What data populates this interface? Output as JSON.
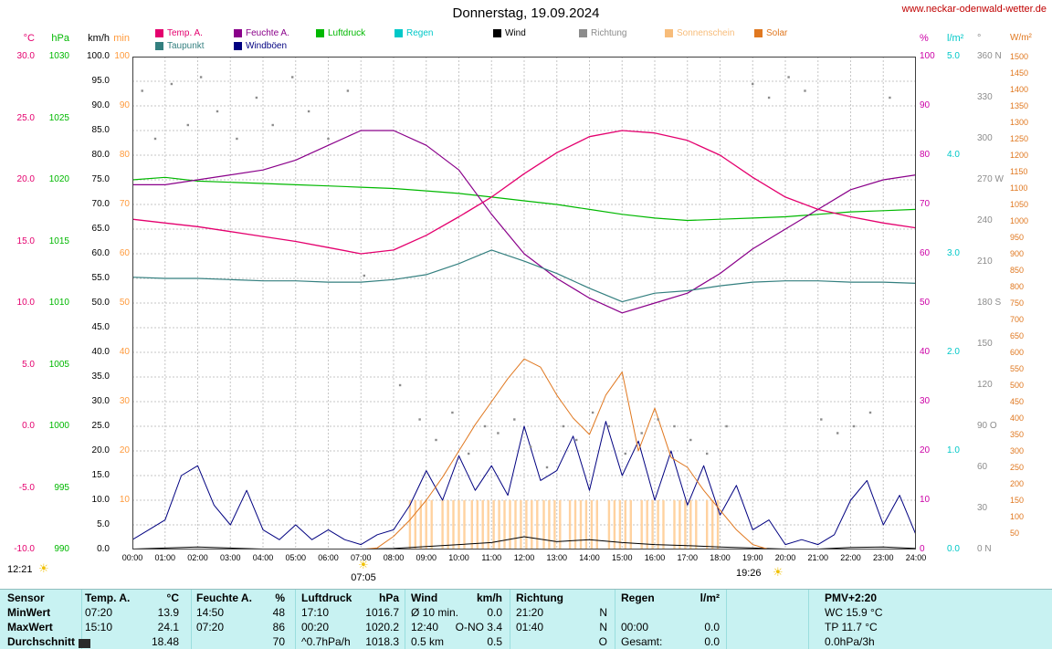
{
  "header": {
    "title": "Donnerstag, 19.09.2024",
    "url": "www.neckar-odenwald-wetter.de"
  },
  "legend": {
    "row1": [
      {
        "label": "Temp. A.",
        "color": "#e4006e"
      },
      {
        "label": "Feuchte A.",
        "color": "#8a008a"
      },
      {
        "label": "Luftdruck",
        "color": "#00b800"
      },
      {
        "label": "Regen",
        "color": "#00c8c8"
      },
      {
        "label": "Wind",
        "color": "#000000"
      },
      {
        "label": "Richtung",
        "color": "#8c8c8c"
      },
      {
        "label": "Sonnenschein",
        "color": "#f7bc7a"
      },
      {
        "label": "Solar",
        "color": "#e07820"
      }
    ],
    "row2": [
      {
        "label": "Taupunkt",
        "color": "#337f7f"
      },
      {
        "label": "Windböen",
        "color": "#000080"
      }
    ]
  },
  "sun": {
    "day_length": "12:21",
    "sunrise_time": "07:05",
    "sunset_time": "19:26"
  },
  "chart_data": {
    "type": "line",
    "title": "Donnerstag, 19.09.2024",
    "x_axis": {
      "min": 0,
      "max": 24,
      "labels": [
        "00:00",
        "01:00",
        "02:00",
        "03:00",
        "04:00",
        "05:00",
        "06:00",
        "07:00",
        "08:00",
        "09:00",
        "10:00",
        "11:00",
        "12:00",
        "13:00",
        "14:00",
        "15:00",
        "16:00",
        "17:00",
        "18:00",
        "19:00",
        "20:00",
        "21:00",
        "22:00",
        "23:00",
        "24:00"
      ]
    },
    "y_axes": [
      {
        "id": "temp",
        "unit": "°C",
        "side": "left",
        "color": "#e4006e",
        "min": -10,
        "max": 30,
        "ticks": [
          "30.0",
          "25.0",
          "20.0",
          "15.0",
          "10.0",
          "5.0",
          "0.0",
          "-5.0",
          "-10.0"
        ]
      },
      {
        "id": "pressure",
        "unit": "hPa",
        "side": "left",
        "color": "#00b800",
        "min": 990,
        "max": 1030,
        "ticks": [
          "1030",
          "1025",
          "1020",
          "1015",
          "1010",
          "1005",
          "1000",
          "995",
          "990"
        ]
      },
      {
        "id": "wind",
        "unit": "km/h",
        "side": "left",
        "color": "#000000",
        "min": 0,
        "max": 100,
        "ticks": [
          "100.0",
          "95.0",
          "90.0",
          "85.0",
          "80.0",
          "75.0",
          "70.0",
          "65.0",
          "60.0",
          "55.0",
          "50.0",
          "45.0",
          "40.0",
          "35.0",
          "30.0",
          "25.0",
          "20.0",
          "15.0",
          "10.0",
          "5.0",
          "0.0"
        ]
      },
      {
        "id": "sunshine",
        "unit": "min",
        "side": "left",
        "color": "#ff9a3c",
        "min": 0,
        "max": 100,
        "ticks": [
          "100",
          "90",
          "80",
          "70",
          "60",
          "50",
          "40",
          "30",
          "20",
          "10"
        ]
      },
      {
        "id": "humidity",
        "unit": "%",
        "side": "right",
        "color": "#cc00a6",
        "min": 0,
        "max": 100,
        "ticks": [
          "100",
          "90",
          "80",
          "70",
          "60",
          "50",
          "40",
          "30",
          "20",
          "10",
          "0"
        ]
      },
      {
        "id": "rain",
        "unit": "l/m²",
        "side": "right",
        "color": "#00c8c8",
        "min": 0,
        "max": 5,
        "ticks": [
          "5.0",
          "4.0",
          "3.0",
          "2.0",
          "1.0",
          "0.0"
        ]
      },
      {
        "id": "direction",
        "unit": "°",
        "side": "right",
        "color": "#8c8c8c",
        "min": 0,
        "max": 360,
        "ticks": [
          "360 N",
          "330",
          "300",
          "270 W",
          "240",
          "210",
          "180 S",
          "150",
          "120",
          "90 O",
          "60",
          "30",
          "0 N"
        ]
      },
      {
        "id": "solar",
        "unit": "W/m²",
        "side": "right",
        "color": "#e07820",
        "min": 0,
        "max": 1500,
        "ticks": [
          "1500",
          "1450",
          "1400",
          "1350",
          "1300",
          "1250",
          "1200",
          "1150",
          "1100",
          "1050",
          "1000",
          "950",
          "900",
          "850",
          "800",
          "750",
          "700",
          "650",
          "600",
          "550",
          "500",
          "450",
          "400",
          "350",
          "300",
          "250",
          "200",
          "150",
          "100",
          "50"
        ]
      }
    ],
    "series": [
      {
        "name": "Luftdruck",
        "color": "#00b800",
        "scale": "hpa",
        "step": 1,
        "width": 1.2,
        "values": [
          1020.0,
          1020.2,
          1019.9,
          1019.8,
          1019.7,
          1019.6,
          1019.5,
          1019.4,
          1019.3,
          1019.1,
          1018.9,
          1018.6,
          1018.3,
          1018.0,
          1017.6,
          1017.2,
          1016.9,
          1016.7,
          1016.8,
          1016.9,
          1017.0,
          1017.2,
          1017.4,
          1017.5,
          1017.6
        ]
      },
      {
        "name": "Feuchte A.",
        "color": "#8a008a",
        "scale": "pct",
        "step": 1,
        "width": 1.2,
        "values": [
          74,
          74,
          75,
          76,
          77,
          79,
          82,
          85,
          85,
          82,
          77,
          68,
          60,
          55,
          51,
          48,
          50,
          52,
          56,
          61,
          65,
          69,
          73,
          75,
          76
        ]
      },
      {
        "name": "Taupunkt",
        "color": "#337f7f",
        "scale": "temp",
        "step": 1,
        "width": 1.2,
        "values": [
          12.1,
          12.0,
          12.0,
          11.9,
          11.8,
          11.8,
          11.7,
          11.7,
          11.9,
          12.3,
          13.2,
          14.3,
          13.4,
          12.4,
          11.2,
          10.1,
          10.8,
          11.0,
          11.4,
          11.7,
          11.8,
          11.8,
          11.7,
          11.7,
          11.6
        ]
      },
      {
        "name": "Temp. A.",
        "color": "#e4006e",
        "scale": "temp",
        "step": 1,
        "width": 1.3,
        "values": [
          16.8,
          16.5,
          16.2,
          15.8,
          15.4,
          15.0,
          14.5,
          14.0,
          14.3,
          15.5,
          17.0,
          18.6,
          20.5,
          22.2,
          23.5,
          24.0,
          23.8,
          23.2,
          22.0,
          20.2,
          18.6,
          17.6,
          17.0,
          16.5,
          16.1
        ]
      },
      {
        "name": "Regen",
        "color": "#00c8c8",
        "scale": "lm2",
        "step": 1,
        "width": 1,
        "values": [
          0,
          0,
          0,
          0,
          0,
          0,
          0,
          0,
          0,
          0,
          0,
          0,
          0,
          0,
          0,
          0,
          0,
          0,
          0,
          0,
          0,
          0,
          0,
          0,
          0
        ]
      },
      {
        "name": "Windböen",
        "color": "#000080",
        "scale": "kmh",
        "step": 0.5,
        "width": 1,
        "values": [
          2,
          4,
          6,
          15,
          17,
          9,
          5,
          12,
          4,
          2,
          5,
          2,
          4,
          2,
          1,
          3,
          4,
          9,
          16,
          10,
          19,
          12,
          17,
          11,
          25,
          14,
          16,
          23,
          12,
          26,
          15,
          22,
          10,
          20,
          9,
          17,
          7,
          13,
          4,
          6,
          1,
          2,
          1,
          3,
          10,
          14,
          5,
          11,
          3
        ]
      },
      {
        "name": "Wind",
        "color": "#000000",
        "scale": "kmh",
        "step": 1,
        "width": 1,
        "values": [
          0.1,
          0.3,
          0.5,
          0.3,
          0.1,
          0.0,
          0.1,
          0.1,
          0.2,
          0.6,
          1.0,
          1.4,
          2.6,
          1.6,
          2.0,
          1.4,
          1.0,
          0.8,
          0.5,
          0.3,
          0.1,
          0.1,
          0.4,
          0.5,
          0.2
        ]
      },
      {
        "name": "Solar",
        "color": "#e07820",
        "scale": "wm2",
        "step": 0.5,
        "width": 1,
        "values": [
          0,
          0,
          0,
          0,
          0,
          0,
          0,
          0,
          0,
          0,
          0,
          0,
          0,
          0,
          0,
          5,
          40,
          90,
          150,
          220,
          300,
          380,
          450,
          520,
          580,
          555,
          470,
          400,
          350,
          470,
          540,
          300,
          430,
          280,
          250,
          180,
          120,
          60,
          15,
          0,
          0,
          0,
          0,
          0,
          0,
          0,
          0,
          0,
          0
        ]
      }
    ],
    "sunshine": {
      "label": "Sonnenschein",
      "color": "#ffd2a0",
      "bar_minutes": 10,
      "intervals": [
        [
          8.5,
          9.3
        ],
        [
          9.5,
          10.2
        ],
        [
          10.4,
          12.4
        ],
        [
          12.6,
          13.1
        ],
        [
          13.4,
          14.3
        ],
        [
          14.6,
          15.4
        ],
        [
          15.6,
          16.3
        ],
        [
          16.6,
          17.4
        ],
        [
          17.6,
          18.1
        ]
      ]
    },
    "direction": {
      "label": "Richtung",
      "color": "#8c8c8c",
      "points": [
        [
          0.3,
          335
        ],
        [
          0.7,
          300
        ],
        [
          1.2,
          340
        ],
        [
          1.7,
          310
        ],
        [
          2.1,
          345
        ],
        [
          2.6,
          320
        ],
        [
          3.2,
          300
        ],
        [
          3.8,
          330
        ],
        [
          4.3,
          310
        ],
        [
          4.9,
          345
        ],
        [
          5.4,
          320
        ],
        [
          6.0,
          300
        ],
        [
          6.6,
          335
        ],
        [
          7.1,
          200
        ],
        [
          8.2,
          120
        ],
        [
          8.8,
          95
        ],
        [
          9.3,
          80
        ],
        [
          9.8,
          100
        ],
        [
          10.3,
          70
        ],
        [
          10.8,
          90
        ],
        [
          11.2,
          85
        ],
        [
          11.7,
          95
        ],
        [
          12.2,
          75
        ],
        [
          12.7,
          60
        ],
        [
          13.2,
          90
        ],
        [
          13.6,
          80
        ],
        [
          14.1,
          100
        ],
        [
          14.6,
          90
        ],
        [
          15.1,
          70
        ],
        [
          15.6,
          85
        ],
        [
          16.1,
          95
        ],
        [
          16.6,
          90
        ],
        [
          17.1,
          80
        ],
        [
          17.6,
          70
        ],
        [
          18.2,
          90
        ],
        [
          19.0,
          340
        ],
        [
          19.5,
          330
        ],
        [
          20.1,
          345
        ],
        [
          20.6,
          335
        ],
        [
          21.1,
          95
        ],
        [
          21.6,
          85
        ],
        [
          22.1,
          90
        ],
        [
          22.6,
          100
        ],
        [
          23.2,
          330
        ]
      ]
    }
  },
  "table": {
    "header": {
      "sensor": "Sensor",
      "temp": "Temp. A.",
      "temp_unit": "°C",
      "humidity": "Feuchte A.",
      "humidity_unit": "%",
      "pressure": "Luftdruck",
      "pressure_unit": "hPa",
      "wind": "Wind",
      "wind_unit": "km/h",
      "direction": "Richtung",
      "rain": "Regen",
      "rain_unit": "l/m²",
      "pmv": "PMV+2:20"
    },
    "rows": [
      {
        "label": "MinWert",
        "temp_time": "07:20",
        "temp": "13.9",
        "hum_time": "14:50",
        "hum": "48",
        "press_time": "17:10",
        "press": "1016.7",
        "wind_time": "Ø 10 min.",
        "wind": "0.0",
        "dir_time": "21:20",
        "dir": "N",
        "rain_time": "",
        "rain": "",
        "pmv": "WC 15.9 °C"
      },
      {
        "label": "MaxWert",
        "temp_time": "15:10",
        "temp": "24.1",
        "hum_time": "07:20",
        "hum": "86",
        "press_time": "00:20",
        "press": "1020.2",
        "wind_time": "12:40",
        "wind": "O-NO 3.4",
        "dir_time": "01:40",
        "dir": "N",
        "rain_time": "00:00",
        "rain": "0.0",
        "pmv": "TP 11.7 °C"
      },
      {
        "label": "Durchschnitt",
        "temp_time": "",
        "temp": "18.48",
        "hum_time": "",
        "hum": "70",
        "press_time": "^0.7hPa/h",
        "press": "1018.3",
        "wind_time": "0.5 km",
        "wind": "0.5",
        "dir_time": "",
        "dir": "O",
        "rain_time": "Gesamt:",
        "rain": "0.0",
        "pmv": "0.0hPa/3h"
      }
    ]
  }
}
